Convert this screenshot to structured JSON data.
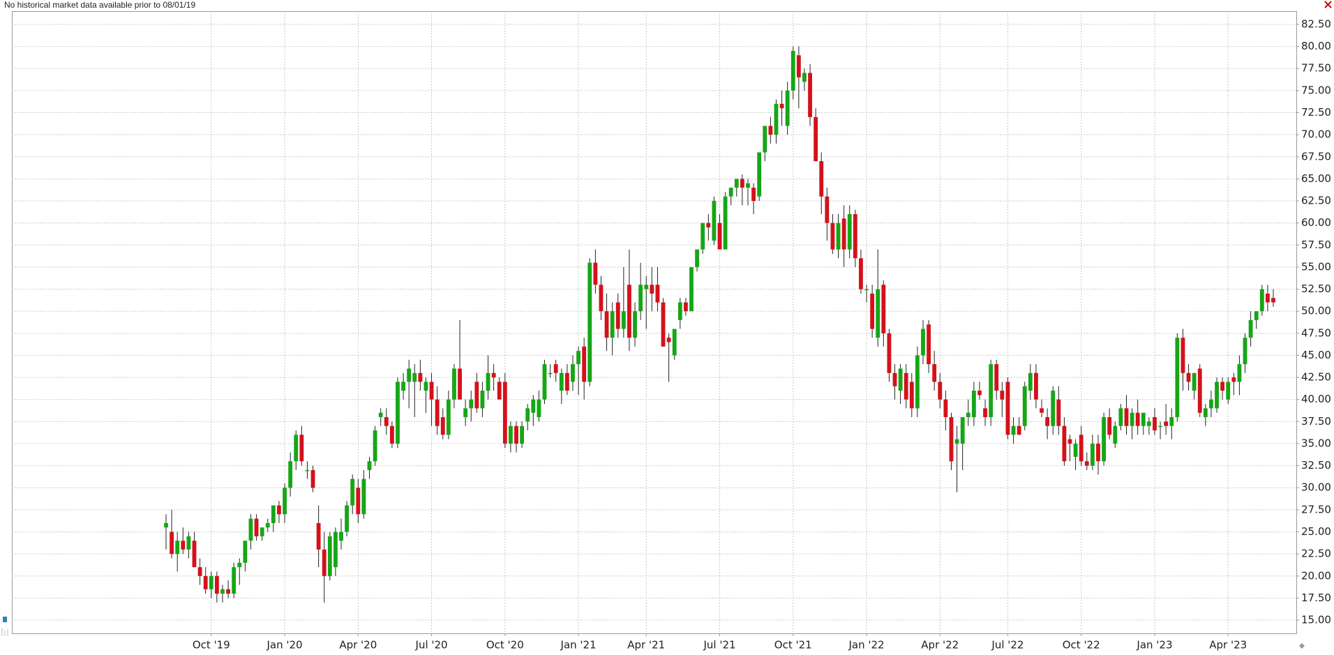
{
  "chart_data": {
    "type": "candlestick",
    "note": "No historical market data available prior to 08/01/19",
    "up_color": "#16a616",
    "down_color": "#d4111b",
    "grid": true,
    "ylim": [
      13.5,
      84
    ],
    "yticks": [
      {
        "value": 15,
        "label": "15.00"
      },
      {
        "value": 17.5,
        "label": "17.50"
      },
      {
        "value": 20,
        "label": "20.00"
      },
      {
        "value": 22.5,
        "label": "22.50"
      },
      {
        "value": 25,
        "label": "25.00"
      },
      {
        "value": 27.5,
        "label": "27.50"
      },
      {
        "value": 30,
        "label": "30.00"
      },
      {
        "value": 32.5,
        "label": "32.50"
      },
      {
        "value": 35,
        "label": "35.00"
      },
      {
        "value": 37.5,
        "label": "37.50"
      },
      {
        "value": 40,
        "label": "40.00"
      },
      {
        "value": 42.5,
        "label": "42.50"
      },
      {
        "value": 45,
        "label": "45.00"
      },
      {
        "value": 47.5,
        "label": "47.50"
      },
      {
        "value": 50,
        "label": "50.00"
      },
      {
        "value": 52.5,
        "label": "52.50"
      },
      {
        "value": 55,
        "label": "55.00"
      },
      {
        "value": 57.5,
        "label": "57.50"
      },
      {
        "value": 60,
        "label": "60.00"
      },
      {
        "value": 62.5,
        "label": "62.50"
      },
      {
        "value": 65,
        "label": "65.00"
      },
      {
        "value": 67.5,
        "label": "67.50"
      },
      {
        "value": 70,
        "label": "70.00"
      },
      {
        "value": 72.5,
        "label": "72.50"
      },
      {
        "value": 75,
        "label": "75.00"
      },
      {
        "value": 77.5,
        "label": "77.50"
      },
      {
        "value": 80,
        "label": "80.00"
      },
      {
        "value": 82.5,
        "label": "82.50"
      }
    ],
    "categories": [
      null,
      null,
      null,
      null,
      null,
      null,
      null,
      null,
      "Oct '19",
      null,
      null,
      null,
      null,
      null,
      null,
      null,
      null,
      null,
      null,
      null,
      null,
      "Jan '20",
      null,
      null,
      null,
      null,
      null,
      null,
      null,
      null,
      null,
      null,
      null,
      null,
      "Apr '20",
      null,
      null,
      null,
      null,
      null,
      null,
      null,
      null,
      null,
      null,
      null,
      null,
      "Jul '20",
      null,
      null,
      null,
      null,
      null,
      null,
      null,
      null,
      null,
      null,
      null,
      null,
      "Oct '20",
      null,
      null,
      null,
      null,
      null,
      null,
      null,
      null,
      null,
      null,
      null,
      null,
      "Jan '21",
      null,
      null,
      null,
      null,
      null,
      null,
      null,
      null,
      null,
      null,
      null,
      "Apr '21",
      null,
      null,
      null,
      null,
      null,
      null,
      null,
      null,
      null,
      null,
      null,
      null,
      "Jul '21",
      null,
      null,
      null,
      null,
      null,
      null,
      null,
      null,
      null,
      null,
      null,
      null,
      "Oct '21",
      null,
      null,
      null,
      null,
      null,
      null,
      null,
      null,
      null,
      null,
      null,
      null,
      "Jan '22",
      null,
      null,
      null,
      null,
      null,
      null,
      null,
      null,
      null,
      null,
      null,
      null,
      "Apr '22",
      null,
      null,
      null,
      null,
      null,
      null,
      null,
      null,
      null,
      null,
      null,
      "Jul '22",
      null,
      null,
      null,
      null,
      null,
      null,
      null,
      null,
      null,
      null,
      null,
      null,
      "Oct '22",
      null,
      null,
      null,
      null,
      null,
      null,
      null,
      null,
      null,
      null,
      null,
      null,
      "Jan '23",
      null,
      null,
      null,
      null,
      null,
      null,
      null,
      null,
      null,
      null,
      null,
      null,
      "Apr '23",
      null,
      null,
      null,
      null,
      null,
      null,
      null,
      null
    ],
    "ohlc": [
      [
        25.5,
        27,
        23,
        26
      ],
      [
        25,
        27.5,
        22,
        22.5
      ],
      [
        22.5,
        25,
        20.5,
        24
      ],
      [
        24,
        25.5,
        22.5,
        23
      ],
      [
        23,
        25,
        22,
        24.5
      ],
      [
        24,
        25,
        21,
        21
      ],
      [
        21,
        22,
        19,
        20
      ],
      [
        20,
        21,
        18,
        18.5
      ],
      [
        18.5,
        20.5,
        17.5,
        20
      ],
      [
        20,
        20.5,
        17,
        18
      ],
      [
        18,
        19,
        17,
        18.5
      ],
      [
        18.5,
        19.5,
        17.5,
        18
      ],
      [
        18,
        21.5,
        17.5,
        21
      ],
      [
        21,
        22,
        19,
        21.5
      ],
      [
        21.5,
        24,
        20.5,
        24
      ],
      [
        24,
        27,
        23,
        26.5
      ],
      [
        26.5,
        27,
        24,
        24.5
      ],
      [
        24.5,
        25.5,
        24,
        25.5
      ],
      [
        25.5,
        26.5,
        25,
        26
      ],
      [
        26,
        28,
        25,
        28
      ],
      [
        28,
        28.5,
        26,
        27
      ],
      [
        27,
        30.5,
        26,
        30
      ],
      [
        30,
        34,
        29,
        33
      ],
      [
        33,
        36.5,
        32,
        36
      ],
      [
        36,
        37,
        32.5,
        33
      ],
      [
        32,
        33,
        31,
        32
      ],
      [
        32,
        32.5,
        29.5,
        30
      ],
      [
        26,
        28,
        21,
        23
      ],
      [
        23,
        25,
        17,
        20
      ],
      [
        20,
        25,
        19.5,
        24.5
      ],
      [
        21,
        25.5,
        20,
        25
      ],
      [
        24,
        26.5,
        23,
        25
      ],
      [
        25,
        28.5,
        24.5,
        28
      ],
      [
        28,
        31.5,
        27,
        31
      ],
      [
        30,
        31,
        26,
        27
      ],
      [
        27,
        32,
        26.5,
        31
      ],
      [
        32,
        33.5,
        31,
        33
      ],
      [
        33,
        37,
        32.5,
        36.5
      ],
      [
        38,
        39,
        37,
        38.5
      ],
      [
        38,
        39,
        36,
        37
      ],
      [
        37,
        37.5,
        34.5,
        35
      ],
      [
        35,
        42.5,
        34.5,
        42
      ],
      [
        41,
        43,
        40,
        42
      ],
      [
        42,
        44.5,
        39,
        43.5
      ],
      [
        42,
        44,
        38,
        43
      ],
      [
        43,
        44.5,
        41,
        42
      ],
      [
        41,
        42.5,
        38.5,
        42
      ],
      [
        42,
        43,
        37,
        40
      ],
      [
        40,
        41.5,
        36,
        37
      ],
      [
        38,
        39,
        35.5,
        36
      ],
      [
        36,
        41,
        35.5,
        40
      ],
      [
        40,
        44,
        39,
        43.5
      ],
      [
        43.5,
        49,
        40,
        40
      ],
      [
        38,
        40,
        37,
        39
      ],
      [
        39,
        41,
        37.5,
        40
      ],
      [
        42,
        43,
        38.5,
        39
      ],
      [
        39,
        42,
        38,
        41
      ],
      [
        41,
        45,
        40,
        43
      ],
      [
        43,
        44,
        41,
        42.5
      ],
      [
        42,
        42.5,
        40,
        40
      ],
      [
        42,
        43,
        34.5,
        35
      ],
      [
        35,
        37.5,
        34,
        37
      ],
      [
        37,
        37.5,
        34,
        35
      ],
      [
        35,
        37.5,
        34.5,
        37
      ],
      [
        37.5,
        39.5,
        36.5,
        39
      ],
      [
        38.5,
        40.5,
        37,
        40
      ],
      [
        38,
        41,
        37.5,
        40
      ],
      [
        40,
        44.5,
        39.5,
        44
      ],
      [
        43,
        44,
        42.5,
        43
      ],
      [
        44,
        44.5,
        42,
        43
      ],
      [
        41,
        43.5,
        39.5,
        43
      ],
      [
        43,
        44,
        40.5,
        41
      ],
      [
        42,
        45,
        41,
        44
      ],
      [
        44,
        46,
        40.5,
        45.5
      ],
      [
        46,
        47,
        40,
        42
      ],
      [
        42,
        56,
        41.5,
        55.5
      ],
      [
        55.5,
        57,
        52,
        53
      ],
      [
        53,
        54,
        49,
        50
      ],
      [
        50,
        52,
        45.5,
        47
      ],
      [
        47,
        51,
        45,
        50
      ],
      [
        51,
        52,
        47,
        48
      ],
      [
        48,
        55,
        47,
        50
      ],
      [
        53,
        57,
        45.5,
        47
      ],
      [
        47,
        51,
        46,
        50
      ],
      [
        50,
        55.5,
        49,
        53
      ],
      [
        52.5,
        54,
        48,
        53
      ],
      [
        53,
        55,
        50,
        52
      ],
      [
        53,
        55,
        50,
        51
      ],
      [
        51,
        51.5,
        46,
        46
      ],
      [
        47,
        47.5,
        42,
        46.5
      ],
      [
        45,
        48,
        44.5,
        48
      ],
      [
        49,
        51.5,
        48,
        51
      ],
      [
        51,
        51.5,
        49.5,
        50
      ],
      [
        50,
        55,
        50,
        55
      ],
      [
        55,
        57,
        54.5,
        57
      ],
      [
        57,
        60,
        56.5,
        60
      ],
      [
        60,
        61,
        58,
        59.5
      ],
      [
        58,
        63,
        57.5,
        62.5
      ],
      [
        60,
        61,
        57,
        57
      ],
      [
        57,
        63.5,
        57,
        63
      ],
      [
        63,
        64,
        62,
        64
      ],
      [
        64,
        65,
        63,
        65
      ],
      [
        65,
        65.5,
        62,
        64
      ],
      [
        64,
        65,
        62,
        64.5
      ],
      [
        64,
        64.5,
        61,
        62.5
      ],
      [
        63,
        68,
        62.5,
        68
      ],
      [
        68,
        71,
        67,
        71
      ],
      [
        71,
        72,
        69,
        70
      ],
      [
        70,
        74,
        69,
        73.5
      ],
      [
        73.5,
        75,
        71,
        73
      ],
      [
        71,
        76,
        70,
        75
      ],
      [
        75,
        80,
        74,
        79.5
      ],
      [
        79,
        80,
        73,
        76.5
      ],
      [
        76,
        77.5,
        75,
        77
      ],
      [
        77,
        78,
        71,
        72
      ],
      [
        72,
        73,
        67,
        67
      ],
      [
        67,
        68,
        61,
        63
      ],
      [
        63,
        64,
        58,
        60
      ],
      [
        60,
        61,
        56.5,
        57
      ],
      [
        57,
        61,
        56,
        60
      ],
      [
        60.5,
        62,
        55,
        57
      ],
      [
        57,
        62,
        56,
        61
      ],
      [
        61,
        61.5,
        55,
        56
      ],
      [
        56,
        57,
        52,
        52.5
      ],
      [
        52.5,
        53,
        51,
        52.5
      ],
      [
        52,
        53,
        47,
        48
      ],
      [
        47,
        57,
        46,
        52.5
      ],
      [
        53,
        53.5,
        46,
        47.5
      ],
      [
        47.5,
        48,
        42,
        43
      ],
      [
        43,
        44,
        40,
        41.5
      ],
      [
        41,
        44,
        39.5,
        43.5
      ],
      [
        43,
        44,
        39,
        40
      ],
      [
        42,
        43,
        38,
        39
      ],
      [
        39,
        46,
        38,
        45
      ],
      [
        45,
        49,
        44,
        48
      ],
      [
        48.5,
        49,
        43,
        44
      ],
      [
        44,
        45.5,
        41,
        42
      ],
      [
        42,
        43,
        39,
        40
      ],
      [
        40,
        41,
        36.5,
        38
      ],
      [
        38,
        38.5,
        32,
        33
      ],
      [
        35,
        37,
        29.5,
        35.5
      ],
      [
        35,
        38,
        32,
        38
      ],
      [
        38,
        40,
        37,
        38.5
      ],
      [
        38,
        42,
        37,
        41
      ],
      [
        41,
        42,
        40,
        40.5
      ],
      [
        39,
        40,
        37,
        38
      ],
      [
        38,
        44.5,
        37,
        44
      ],
      [
        44,
        44.5,
        40,
        41
      ],
      [
        41,
        42,
        38,
        40
      ],
      [
        42,
        42.5,
        35.5,
        36
      ],
      [
        36,
        38,
        35,
        37
      ],
      [
        37,
        38,
        36,
        36
      ],
      [
        37,
        42,
        36.5,
        41.5
      ],
      [
        41,
        44,
        40,
        43
      ],
      [
        43,
        44,
        39,
        40
      ],
      [
        39,
        40,
        38,
        38.5
      ],
      [
        38,
        39,
        35.5,
        37
      ],
      [
        37,
        41.5,
        36,
        41
      ],
      [
        40,
        41.5,
        36,
        37
      ],
      [
        37,
        38,
        32.5,
        33
      ],
      [
        35.5,
        36,
        33,
        35
      ],
      [
        33.5,
        35.5,
        32,
        35
      ],
      [
        36,
        37,
        32.5,
        33
      ],
      [
        33,
        34,
        32,
        32.5
      ],
      [
        32.5,
        36,
        32,
        35
      ],
      [
        35,
        36,
        31.5,
        33
      ],
      [
        33,
        38.5,
        32.5,
        38
      ],
      [
        38,
        39,
        35.5,
        36
      ],
      [
        35,
        37.5,
        34.5,
        37
      ],
      [
        37,
        39.5,
        36.5,
        39
      ],
      [
        39,
        40.5,
        36,
        37
      ],
      [
        37,
        39,
        35.5,
        38.5
      ],
      [
        38.5,
        40,
        36,
        37
      ],
      [
        37,
        38.5,
        36,
        38.5
      ],
      [
        37,
        38,
        36,
        37.5
      ],
      [
        38,
        39,
        36,
        36.5
      ],
      [
        37,
        37.5,
        35.5,
        37
      ],
      [
        37.5,
        39.5,
        36,
        37
      ],
      [
        37,
        39,
        35.5,
        38
      ],
      [
        38,
        47.5,
        37.5,
        47
      ],
      [
        47,
        48,
        41,
        43
      ],
      [
        43,
        44,
        41,
        42
      ],
      [
        41,
        43,
        40,
        43
      ],
      [
        43.5,
        44,
        38,
        38.5
      ],
      [
        38,
        39.5,
        37,
        39
      ],
      [
        39,
        41,
        38,
        40
      ],
      [
        39,
        42.5,
        38.5,
        42
      ],
      [
        42,
        42.5,
        40,
        41
      ],
      [
        40,
        42.5,
        39.5,
        42
      ],
      [
        42.5,
        43,
        40.5,
        42
      ],
      [
        42,
        45,
        40.5,
        44
      ],
      [
        44,
        47.5,
        43,
        47
      ],
      [
        47,
        50,
        46,
        49
      ],
      [
        49,
        50,
        48,
        50
      ],
      [
        50,
        53,
        49.5,
        52.5
      ],
      [
        52,
        53,
        50,
        51
      ],
      [
        51.5,
        52.5,
        50.5,
        51
      ]
    ]
  }
}
